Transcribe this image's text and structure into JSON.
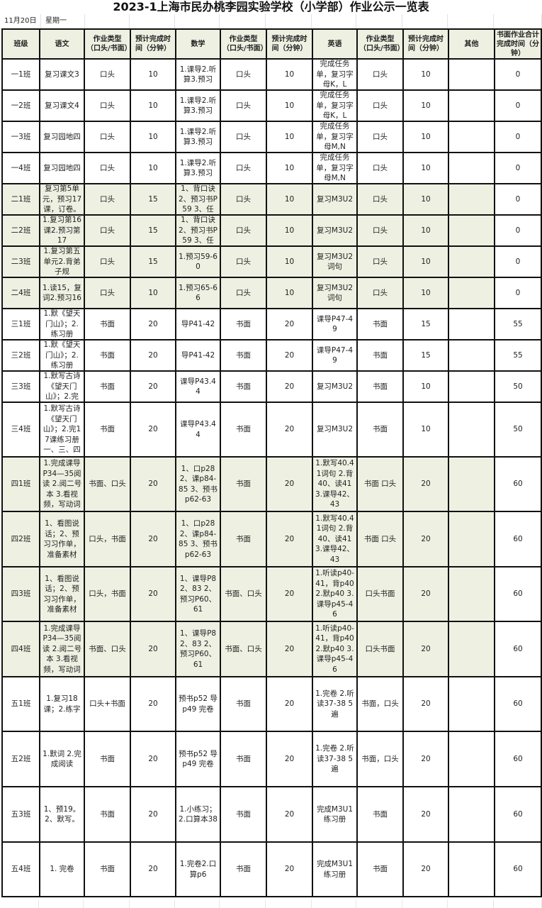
{
  "title": "2023-1上海市民办桃李园实验学校（小学部）作业公示一览表",
  "date": "11月20日",
  "weekday": "星期一",
  "colors": {
    "header_bg": "#eef0e2",
    "group_bg": "#eef0e2",
    "border": "#111111"
  },
  "headers": [
    "班级",
    "语文",
    "作业类型（口头/书面）",
    "预计完成时间（分钟）",
    "数学",
    "作业类型（口头/书面）",
    "预计完成时间（分钟）",
    "英语",
    "作业类型（口头/书面）",
    "预计完成时间（分钟）",
    "其他",
    "书面作业合计完成时间（分钟）"
  ],
  "rows": [
    {
      "shade": false,
      "cells": [
        "一1班",
        "复习课文3",
        "口头",
        "10",
        "1.课导2.听算3.预习",
        "口头",
        "10",
        "完成任务单，复习字母K，L",
        "口头",
        "10",
        "",
        "0"
      ]
    },
    {
      "shade": false,
      "cells": [
        "一2班",
        "复习课文4",
        "口头",
        "10",
        "1.课导2.听算3.预习",
        "口头",
        "10",
        "完成任务单，复习字母K，L",
        "口头",
        "10",
        "",
        "0"
      ]
    },
    {
      "shade": false,
      "cells": [
        "一3班",
        "复习园地四",
        "口头",
        "10",
        "1.课导2.听算3.预习",
        "口头",
        "10",
        "完成任务单，复习字母M,N",
        "口头",
        "10",
        "",
        "0"
      ]
    },
    {
      "shade": false,
      "cells": [
        "一4班",
        "复习园地四",
        "口头",
        "10",
        "1.课导2.听算3.预习",
        "口头",
        "10",
        "完成任务单，复习字母M,N",
        "口头",
        "10",
        "",
        "0"
      ]
    },
    {
      "shade": true,
      "cells": [
        "二1班",
        "复习第5单元，预习17课，订卷。",
        "口头",
        "15",
        "1、背口诀2、预习书P59 3、任",
        "口头",
        "10",
        "复习M3U2",
        "口头",
        "10",
        "",
        "0"
      ]
    },
    {
      "shade": true,
      "cells": [
        "二2班",
        "1.复习第16课2.预习第17",
        "口头",
        "15",
        "1、背口诀2、预习书P59 3、任",
        "口头",
        "10",
        "复习M3U2",
        "口头",
        "10",
        "",
        "0"
      ]
    },
    {
      "shade": true,
      "cells": [
        "二3班",
        "1.复习第五单元2.背弟子规",
        "口头",
        "15",
        "1.预习59-60",
        "口头",
        "10",
        "复习M3U2词句",
        "口头",
        "10",
        "",
        "0"
      ]
    },
    {
      "shade": true,
      "cells": [
        "二4班",
        "1.读15，复词2.预习16",
        "口头",
        "10",
        "1.预习65-66",
        "口头",
        "10",
        "复习M3U2词句",
        "口头",
        "10",
        "",
        "0"
      ]
    },
    {
      "shade": false,
      "cells": [
        "三1班",
        "1.默《望天门山》；2.练习册",
        "书面",
        "20",
        "导P41-42",
        "书面",
        "20",
        "课导P47-49",
        "书面",
        "15",
        "",
        "55"
      ]
    },
    {
      "shade": false,
      "cells": [
        "三2班",
        "1.默《望天门山》；2.练习册",
        "书面",
        "20",
        "导P41-42",
        "书面",
        "20",
        "课导P47-49",
        "书面",
        "15",
        "",
        "55"
      ]
    },
    {
      "shade": false,
      "cells": [
        "三3班",
        "1.默写古诗《望天门山》；2.完",
        "书面",
        "20",
        "课导P43.44",
        "书面",
        "20",
        "复习M3U2",
        "书面",
        "10",
        "",
        "50"
      ]
    },
    {
      "shade": false,
      "cells": [
        "三4班",
        "1.默写古诗《望天门山》；2.完17课练习册一、三、四",
        "书面",
        "20",
        "课导P43.44",
        "书面",
        "20",
        "复习M3U2",
        "书面",
        "10",
        "",
        "50"
      ]
    },
    {
      "shade": true,
      "cells": [
        "四1班",
        "1.完成课导P34—35阅读 2.阅二号本 3.看视频，写动词",
        "书面、口头",
        "20",
        "1、口p28 2、课p84-85 3、预书 p62-63",
        "书面",
        "20",
        "1.默写40.41词句 2.背40、读41 3.课导42、43",
        "书面 口头",
        "20",
        "",
        "60"
      ]
    },
    {
      "shade": true,
      "cells": [
        "四2班",
        "1、看图说话；2、预习习作单，准备素材",
        "口头，书面",
        "20",
        "1、口p28 2、课p84-85 3、预书 p62-63",
        "书面",
        "20",
        "1.默写40.41词句 2.背40、读41 3.课导42、43",
        "书面 口头",
        "20",
        "",
        "60"
      ]
    },
    {
      "shade": true,
      "cells": [
        "四3班",
        "1、看图说话；2、预习习作单，准备素材",
        "口头，书面",
        "20",
        "1、课导P82、83 2、预习P60、61",
        "书面、口头",
        "20",
        "1.听读p40-41，背p40 2.默p40 3.课导p45-46",
        "口头书面",
        "20",
        "",
        "60"
      ]
    },
    {
      "shade": true,
      "cells": [
        "四4班",
        "1.完成课导P34—35阅读 2.阅二号本 3.看视频，写动词",
        "书面、口头",
        "20",
        "1、课导P82、83 2、预习P60、61",
        "书面、口头",
        "20",
        "1.听读p40-41，背p40 2.默p40 3.课导p45-46",
        "口头书面",
        "20",
        "",
        "60"
      ]
    },
    {
      "shade": false,
      "cells": [
        "五1班",
        "1.复习18课；2.练字",
        "口头+书面",
        "20",
        "预书p52 导p49 完卷",
        "书面",
        "20",
        "1.完卷 2.听读37-38 5遍",
        "书面，口头",
        "20",
        "",
        "60"
      ]
    },
    {
      "shade": false,
      "cells": [
        "五2班",
        "1.默词 2.完成阅读",
        "书面",
        "20",
        "预书p52 导p49 完卷",
        "书面",
        "20",
        "1.完卷 2.听读37-38 5遍",
        "书面，口头",
        "20",
        "",
        "60"
      ]
    },
    {
      "shade": false,
      "cells": [
        "五3班",
        "1、预19。2、默写。",
        "书面",
        "20",
        "1.小练习；2.口算本38",
        "书面",
        "20",
        "完成M3U1练习册",
        "书面",
        "20",
        "",
        "60"
      ]
    },
    {
      "shade": false,
      "cells": [
        "五4班",
        "1. 完卷",
        "书面",
        "20",
        "1.完卷2.口算p6",
        "书面",
        "20",
        "完成M3U1练习册",
        "书面",
        "20",
        "",
        "60"
      ]
    }
  ]
}
